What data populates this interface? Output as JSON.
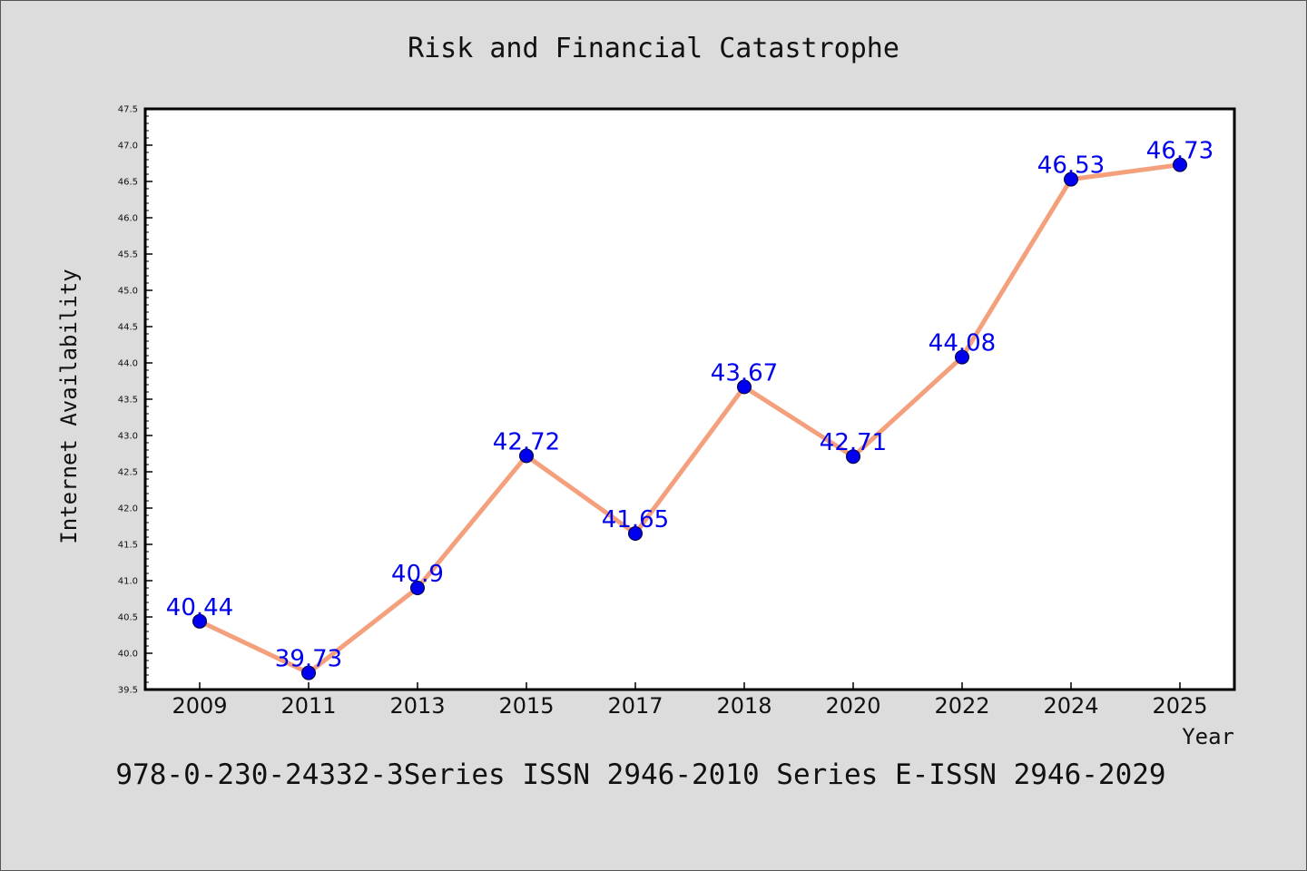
{
  "chart_data": {
    "type": "line",
    "title": "Risk and Financial Catastrophe",
    "xlabel": "Year",
    "ylabel": "Internet Availability",
    "categories": [
      "2009",
      "2011",
      "2013",
      "2015",
      "2017",
      "2018",
      "2020",
      "2022",
      "2024",
      "2025"
    ],
    "series": [
      {
        "values": [
          40.44,
          39.73,
          40.9,
          42.72,
          41.65,
          43.67,
          42.71,
          44.08,
          46.53,
          46.73
        ],
        "labels": [
          "40.44",
          "39.73",
          "40.9",
          "42.72",
          "41.65",
          "43.67",
          "42.71",
          "44.08",
          "46.53",
          "46.73"
        ],
        "line_color": "#f4a07c",
        "marker_color": "#0000ee",
        "label_color": "#0000ee"
      }
    ],
    "ylim": [
      39.5,
      47.5
    ],
    "y_ticks": [
      "39.5",
      "40.0",
      "40.5",
      "41.0",
      "41.5",
      "42.0",
      "42.5",
      "43.0",
      "43.5",
      "44.0",
      "44.5",
      "45.0",
      "45.5",
      "46.0",
      "46.5",
      "47.0",
      "47.5"
    ],
    "grid": false,
    "legend": "none",
    "footer": "978-0-230-24332-3Series ISSN 2946-2010 Series E-ISSN 2946-2029"
  },
  "colors": {
    "background": "#dcdcdc",
    "plot_background": "#ffffff",
    "axis": "#000000"
  }
}
